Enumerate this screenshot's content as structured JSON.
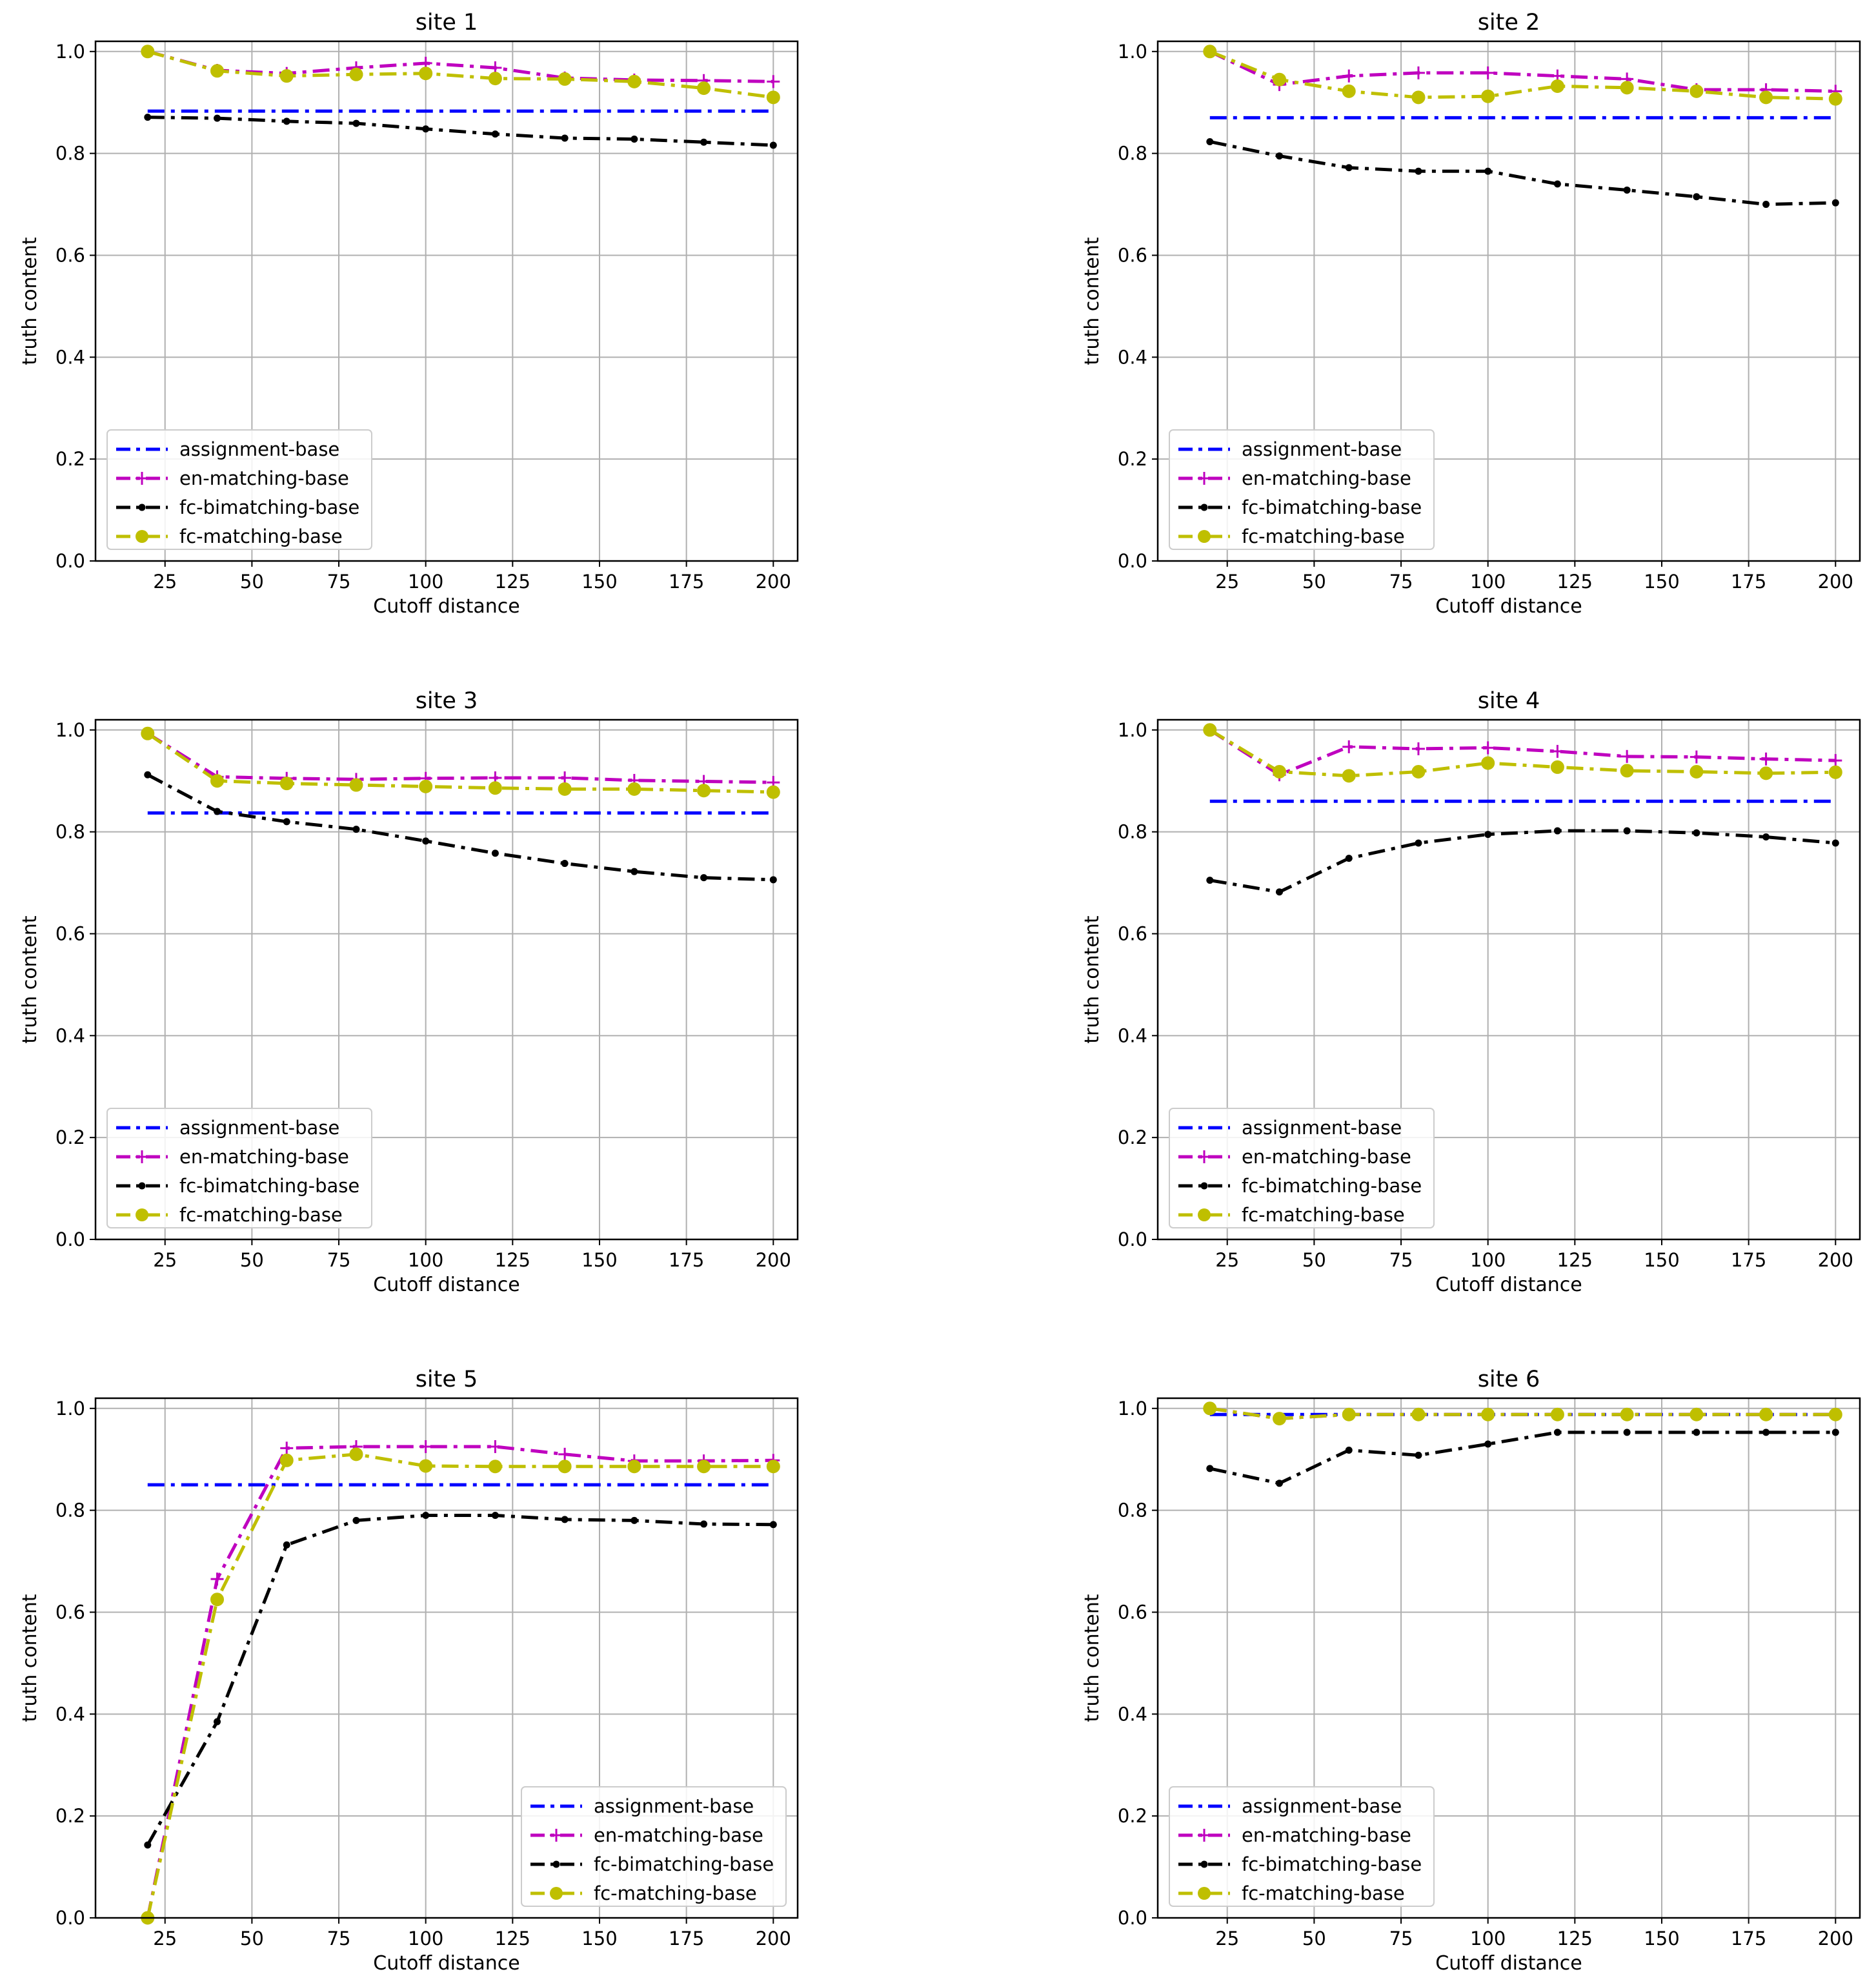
{
  "figure": {
    "x": [
      20,
      40,
      60,
      80,
      100,
      120,
      140,
      160,
      180,
      200
    ],
    "xlabel": "Cutoff distance",
    "ylabel": "truth content",
    "xlim": [
      5,
      207
    ],
    "ylim": [
      0,
      1.02
    ],
    "xticks": [
      25,
      50,
      75,
      100,
      125,
      150,
      175,
      200
    ],
    "yticks": [
      0.0,
      0.2,
      0.4,
      0.6,
      0.8,
      1.0
    ],
    "ytick_labels": [
      "0.0",
      "0.2",
      "0.4",
      "0.6",
      "0.8",
      "1.0"
    ],
    "grid": true,
    "series_styles": {
      "assignment-base": {
        "color": "#0000ff",
        "marker": "none"
      },
      "en-matching-base": {
        "color": "#bf00bf",
        "marker": "plus"
      },
      "fc-bimatching-base": {
        "color": "#000000",
        "marker": "dot"
      },
      "fc-matching-base": {
        "color": "#bfbf00",
        "marker": "circle"
      }
    }
  },
  "chart_data": [
    {
      "type": "line",
      "title": "site 1",
      "legend_position": "lower-left",
      "series": [
        {
          "name": "assignment-base",
          "values": [
            0.883,
            0.883,
            0.883,
            0.883,
            0.883,
            0.883,
            0.883,
            0.883,
            0.883,
            0.883
          ]
        },
        {
          "name": "en-matching-base",
          "values": [
            1.0,
            0.963,
            0.957,
            0.968,
            0.977,
            0.968,
            0.948,
            0.944,
            0.943,
            0.941
          ]
        },
        {
          "name": "fc-bimatching-base",
          "values": [
            0.871,
            0.869,
            0.863,
            0.859,
            0.848,
            0.838,
            0.83,
            0.828,
            0.822,
            0.816
          ]
        },
        {
          "name": "fc-matching-base",
          "values": [
            1.0,
            0.962,
            0.952,
            0.955,
            0.957,
            0.947,
            0.946,
            0.941,
            0.928,
            0.91
          ]
        }
      ]
    },
    {
      "type": "line",
      "title": "site 2",
      "legend_position": "lower-left",
      "series": [
        {
          "name": "assignment-base",
          "values": [
            0.87,
            0.87,
            0.87,
            0.87,
            0.87,
            0.87,
            0.87,
            0.87,
            0.87,
            0.87
          ]
        },
        {
          "name": "en-matching-base",
          "values": [
            1.0,
            0.935,
            0.952,
            0.958,
            0.958,
            0.952,
            0.946,
            0.925,
            0.925,
            0.922
          ]
        },
        {
          "name": "fc-bimatching-base",
          "values": [
            0.823,
            0.795,
            0.772,
            0.765,
            0.765,
            0.74,
            0.728,
            0.715,
            0.7,
            0.703
          ]
        },
        {
          "name": "fc-matching-base",
          "values": [
            1.0,
            0.945,
            0.922,
            0.91,
            0.912,
            0.932,
            0.929,
            0.922,
            0.91,
            0.907
          ]
        }
      ]
    },
    {
      "type": "line",
      "title": "site 3",
      "legend_position": "lower-left",
      "series": [
        {
          "name": "assignment-base",
          "values": [
            0.837,
            0.837,
            0.837,
            0.837,
            0.837,
            0.837,
            0.837,
            0.837,
            0.837,
            0.837
          ]
        },
        {
          "name": "en-matching-base",
          "values": [
            0.993,
            0.908,
            0.905,
            0.903,
            0.905,
            0.906,
            0.906,
            0.901,
            0.899,
            0.897
          ]
        },
        {
          "name": "fc-bimatching-base",
          "values": [
            0.912,
            0.84,
            0.82,
            0.805,
            0.782,
            0.758,
            0.738,
            0.722,
            0.71,
            0.706
          ]
        },
        {
          "name": "fc-matching-base",
          "values": [
            0.993,
            0.9,
            0.895,
            0.892,
            0.889,
            0.886,
            0.884,
            0.884,
            0.881,
            0.878
          ]
        }
      ]
    },
    {
      "type": "line",
      "title": "site 4",
      "legend_position": "lower-left",
      "series": [
        {
          "name": "assignment-base",
          "values": [
            0.86,
            0.86,
            0.86,
            0.86,
            0.86,
            0.86,
            0.86,
            0.86,
            0.86,
            0.86
          ]
        },
        {
          "name": "en-matching-base",
          "values": [
            1.0,
            0.912,
            0.967,
            0.963,
            0.965,
            0.958,
            0.948,
            0.947,
            0.943,
            0.94
          ]
        },
        {
          "name": "fc-bimatching-base",
          "values": [
            0.705,
            0.682,
            0.748,
            0.778,
            0.795,
            0.802,
            0.802,
            0.798,
            0.79,
            0.778
          ]
        },
        {
          "name": "fc-matching-base",
          "values": [
            1.0,
            0.918,
            0.91,
            0.918,
            0.935,
            0.927,
            0.92,
            0.918,
            0.915,
            0.917
          ]
        }
      ]
    },
    {
      "type": "line",
      "title": "site 5",
      "legend_position": "lower-right",
      "series": [
        {
          "name": "assignment-base",
          "values": [
            0.85,
            0.85,
            0.85,
            0.85,
            0.85,
            0.85,
            0.85,
            0.85,
            0.85,
            0.85
          ]
        },
        {
          "name": "en-matching-base",
          "values": [
            0.0,
            0.665,
            0.922,
            0.925,
            0.925,
            0.925,
            0.91,
            0.897,
            0.897,
            0.898
          ]
        },
        {
          "name": "fc-bimatching-base",
          "values": [
            0.143,
            0.385,
            0.732,
            0.78,
            0.79,
            0.79,
            0.782,
            0.78,
            0.773,
            0.772
          ]
        },
        {
          "name": "fc-matching-base",
          "values": [
            0.0,
            0.625,
            0.898,
            0.91,
            0.887,
            0.886,
            0.886,
            0.886,
            0.886,
            0.886
          ]
        }
      ]
    },
    {
      "type": "line",
      "title": "site 6",
      "legend_position": "lower-left",
      "series": [
        {
          "name": "assignment-base",
          "values": [
            0.988,
            0.988,
            0.988,
            0.988,
            0.988,
            0.988,
            0.988,
            0.988,
            0.988,
            0.988
          ]
        },
        {
          "name": "en-matching-base",
          "values": [
            1.0,
            0.98,
            0.988,
            0.988,
            0.988,
            0.988,
            0.988,
            0.988,
            0.988,
            0.988
          ]
        },
        {
          "name": "fc-bimatching-base",
          "values": [
            0.882,
            0.853,
            0.918,
            0.908,
            0.93,
            0.953,
            0.953,
            0.953,
            0.953,
            0.953
          ]
        },
        {
          "name": "fc-matching-base",
          "values": [
            1.0,
            0.98,
            0.988,
            0.988,
            0.988,
            0.988,
            0.988,
            0.988,
            0.988,
            0.988
          ]
        }
      ]
    }
  ]
}
